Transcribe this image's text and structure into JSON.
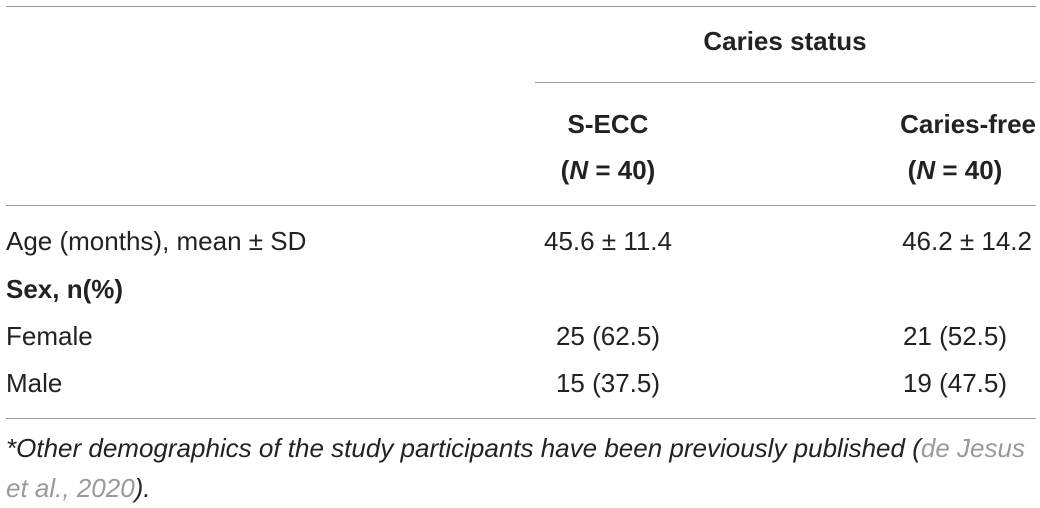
{
  "table": {
    "group_header": "Caries status",
    "columns": [
      {
        "name": "S-ECC",
        "n_prefix": "(",
        "n_symbol": "N",
        "n_suffix": " = 40)"
      },
      {
        "name": "Caries-free",
        "n_prefix": "(",
        "n_symbol": "N",
        "n_suffix": " = 40)"
      }
    ],
    "rows": [
      {
        "label": "Age (months), mean ± SD",
        "bold": false,
        "values": [
          "45.6 ± 11.4",
          "46.2 ± 14.2"
        ]
      },
      {
        "label": "Sex, n(%)",
        "bold": true,
        "values": [
          "",
          ""
        ]
      },
      {
        "label": "Female",
        "bold": false,
        "values": [
          "25 (62.5)",
          "21 (52.5)"
        ]
      },
      {
        "label": "Male",
        "bold": false,
        "values": [
          "15 (37.5)",
          "19 (47.5)"
        ]
      }
    ]
  },
  "footnote": {
    "text": "*Other demographics of the study participants have been previously published (",
    "ref": "de Jesus et al., 2020",
    "end": ")."
  }
}
